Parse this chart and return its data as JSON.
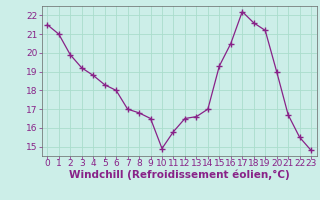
{
  "x": [
    0,
    1,
    2,
    3,
    4,
    5,
    6,
    7,
    8,
    9,
    10,
    11,
    12,
    13,
    14,
    15,
    16,
    17,
    18,
    19,
    20,
    21,
    22,
    23
  ],
  "y": [
    21.5,
    21.0,
    19.9,
    19.2,
    18.8,
    18.3,
    18.0,
    17.0,
    16.8,
    16.5,
    14.9,
    15.8,
    16.5,
    16.6,
    17.0,
    19.3,
    20.5,
    22.2,
    21.6,
    21.2,
    19.0,
    16.7,
    15.5,
    14.8
  ],
  "line_color": "#882288",
  "marker": "+",
  "marker_size": 4,
  "marker_color": "#882288",
  "bg_color": "#cceee8",
  "grid_color": "#aaddcc",
  "axis_color": "#666666",
  "tick_color": "#882288",
  "xlabel": "Windchill (Refroidissement éolien,°C)",
  "xlabel_color": "#882288",
  "xlabel_fontsize": 7.5,
  "tick_fontsize": 6.5,
  "ylim": [
    14.5,
    22.5
  ],
  "yticks": [
    15,
    16,
    17,
    18,
    19,
    20,
    21,
    22
  ],
  "xlim": [
    -0.5,
    23.5
  ],
  "xticks": [
    0,
    1,
    2,
    3,
    4,
    5,
    6,
    7,
    8,
    9,
    10,
    11,
    12,
    13,
    14,
    15,
    16,
    17,
    18,
    19,
    20,
    21,
    22,
    23
  ]
}
